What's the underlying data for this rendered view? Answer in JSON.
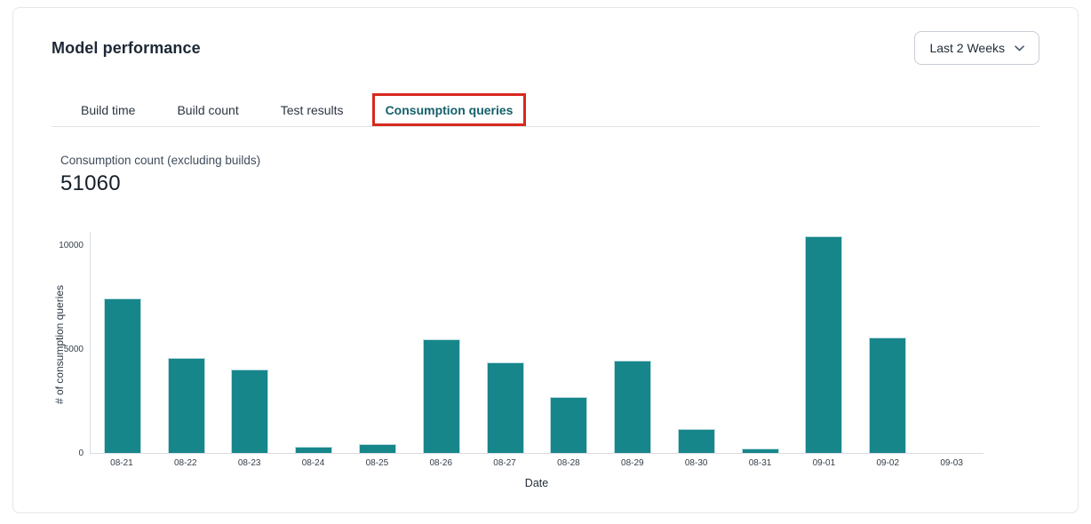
{
  "header": {
    "title": "Model performance",
    "date_range": {
      "value": "Last 2 Weeks"
    }
  },
  "tabs": [
    {
      "label": "Build time",
      "active": false,
      "highlighted": false
    },
    {
      "label": "Build count",
      "active": false,
      "highlighted": false
    },
    {
      "label": "Test results",
      "active": false,
      "highlighted": false
    },
    {
      "label": "Consumption queries",
      "active": true,
      "highlighted": true
    }
  ],
  "stat": {
    "label": "Consumption count (excluding builds)",
    "value": "51060"
  },
  "chart_data": {
    "type": "bar",
    "title": "",
    "categories": [
      "08-21",
      "08-22",
      "08-23",
      "08-24",
      "08-25",
      "08-26",
      "08-27",
      "08-28",
      "08-29",
      "08-30",
      "08-31",
      "09-01",
      "09-02",
      "09-03"
    ],
    "values": [
      7430,
      4570,
      4010,
      300,
      430,
      5470,
      4360,
      2690,
      4440,
      1150,
      200,
      10460,
      5550,
      0
    ],
    "xlabel": "Date",
    "ylabel": "# of consumption queries",
    "yticks": [
      0,
      5000,
      10000
    ],
    "ylim": [
      0,
      10700
    ],
    "bar_color": "#17868b",
    "grid": false,
    "legend": false
  },
  "colors": {
    "accent_teal": "#17868b",
    "active_tab_text": "#14606b",
    "annotation_red": "#d7281e",
    "text_primary": "#1e2936",
    "card_border": "#e4e6ea",
    "axis_line": "#d8dce2"
  }
}
